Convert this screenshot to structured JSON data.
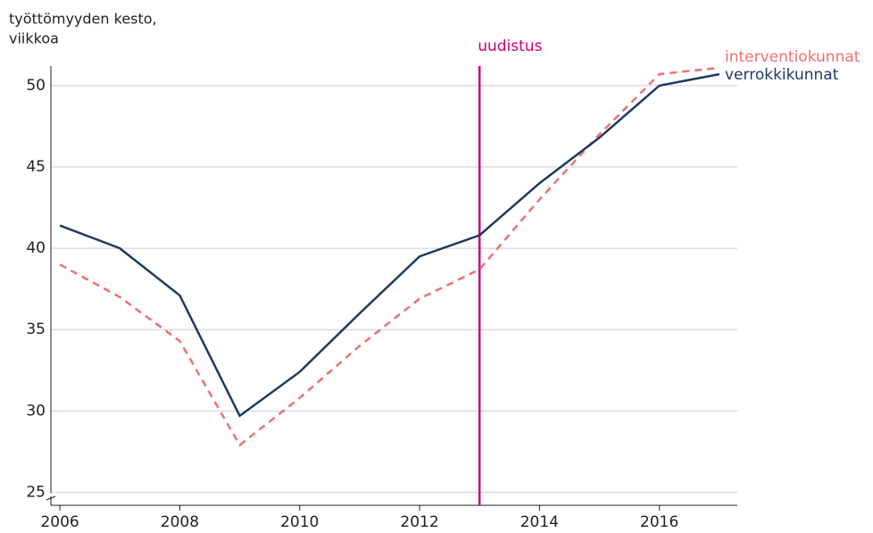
{
  "chart_data": {
    "type": "line",
    "ylabel": [
      "työttömyyden kesto,",
      "viikkoa"
    ],
    "x": [
      2006,
      2007,
      2008,
      2009,
      2010,
      2011,
      2012,
      2013,
      2014,
      2015,
      2016,
      2017
    ],
    "series": [
      {
        "name": "interventiokunnat",
        "color": "#f07070",
        "dashed": true,
        "values": [
          39.0,
          37.0,
          34.3,
          27.9,
          30.8,
          34.0,
          36.9,
          38.7,
          43.0,
          47.0,
          50.7,
          51.1
        ]
      },
      {
        "name": "verrokkikunnat",
        "color": "#1f3a5f",
        "dashed": false,
        "values": [
          41.4,
          40.0,
          37.1,
          29.7,
          32.4,
          36.0,
          39.5,
          40.8,
          44.0,
          46.8,
          50.0,
          50.7
        ]
      }
    ],
    "annotations": [
      {
        "text": "uudistus",
        "x": 2013,
        "color": "#c8007a"
      }
    ],
    "xlim": [
      2005.85,
      2017.3
    ],
    "xticks": [
      2006,
      2008,
      2010,
      2012,
      2014,
      2016
    ],
    "ylim": [
      24.2,
      51.2
    ],
    "yticks": [
      25,
      30,
      35,
      40,
      45,
      50
    ],
    "grid": true
  }
}
